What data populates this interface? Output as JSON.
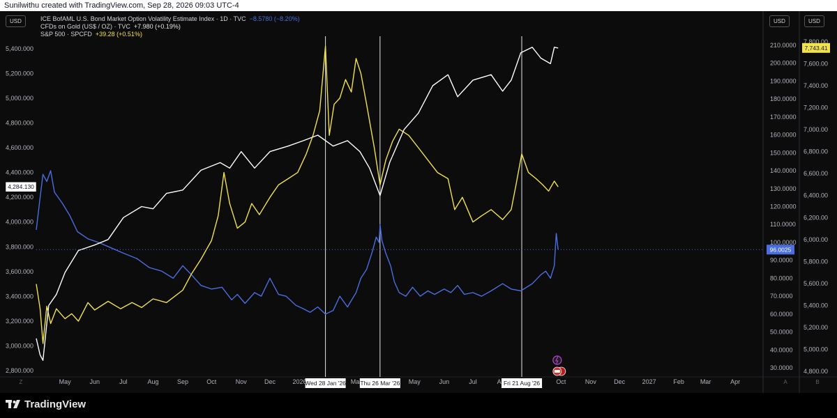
{
  "header": {
    "text": "Sunilwithu created with TradingView.com, Sep 28, 2026 09:03 UTC-4"
  },
  "legend": {
    "rows": [
      {
        "name": "ICE BofAML U.S. Bond Market Option Volatility Estimate Index · 1D · TVC",
        "value": "−8.5780 (−8.20%)"
      },
      {
        "name": "CFDs on Gold (US$ / OZ) · TVC",
        "value": "+7.980 (+0.19%)"
      },
      {
        "name": "S&P 500 · SPCFD",
        "value": "+39.28 (+0.51%)"
      }
    ]
  },
  "currency_badges": {
    "left": "USD",
    "right1": "USD",
    "right2": "USD"
  },
  "footer": {
    "brand": "TradingView",
    "left_corner": "Z",
    "right_corner1": "A",
    "right_corner2": "B"
  },
  "colors": {
    "move": "#4a6ee0",
    "gold": "#f2e24b",
    "spx": "#ffffff",
    "background": "#0c0c0c"
  },
  "chart_data": {
    "type": "line",
    "x_axis": {
      "tick_labels": [
        "May",
        "Jun",
        "Jul",
        "Aug",
        "Sep",
        "Oct",
        "Nov",
        "Dec",
        "2026",
        "Mar",
        "Apr",
        "May",
        "Jun",
        "Jul",
        "Aug",
        "Sep",
        "Oct",
        "Nov",
        "Dec",
        "2027",
        "Feb",
        "Mar",
        "Apr"
      ],
      "range": [
        "2025-04-01",
        "2027-04-30"
      ],
      "grid": false
    },
    "y_axes": {
      "gold": {
        "side": "left",
        "range": [
          2750,
          5500
        ],
        "tick_labels": [
          "2,800.000",
          "3,000.000",
          "3,200.000",
          "3,400.000",
          "3,600.000",
          "3,800.000",
          "4,000.000",
          "4,200.000",
          "4,400.000",
          "4,600.000",
          "4,800.000",
          "5,000.000",
          "5,200.000",
          "5,400.000"
        ]
      },
      "move": {
        "side": "right",
        "range": [
          25,
          215
        ],
        "tick_labels": [
          "30.0000",
          "40.0000",
          "50.0000",
          "60.0000",
          "70.0000",
          "80.0000",
          "90.0000",
          "100.0000",
          "110.0000",
          "120.0000",
          "130.0000",
          "140.0000",
          "150.0000",
          "160.0000",
          "170.0000",
          "180.0000",
          "190.0000",
          "200.0000",
          "210.0000"
        ]
      },
      "spx": {
        "side": "right",
        "range": [
          4750,
          7850
        ],
        "tick_labels": [
          "4,800.00",
          "5,000.00",
          "5,200.00",
          "5,400.00",
          "5,600.00",
          "5,800.00",
          "6,000.00",
          "6,200.00",
          "6,400.00",
          "6,600.00",
          "6,800.00",
          "7,000.00",
          "7,200.00",
          "7,400.00",
          "7,600.00",
          "7,800.00"
        ]
      }
    },
    "series": [
      {
        "key": "move",
        "axis": "move",
        "points": [
          [
            "2025-04-01",
            107
          ],
          [
            "2025-04-05",
            125
          ],
          [
            "2025-04-08",
            138
          ],
          [
            "2025-04-12",
            134
          ],
          [
            "2025-04-16",
            140
          ],
          [
            "2025-04-20",
            128
          ],
          [
            "2025-04-28",
            122
          ],
          [
            "2025-05-06",
            115
          ],
          [
            "2025-05-14",
            106
          ],
          [
            "2025-05-25",
            102
          ],
          [
            "2025-06-05",
            100
          ],
          [
            "2025-06-18",
            97
          ],
          [
            "2025-07-01",
            94
          ],
          [
            "2025-07-15",
            91
          ],
          [
            "2025-07-28",
            86
          ],
          [
            "2025-08-10",
            84
          ],
          [
            "2025-08-22",
            80
          ],
          [
            "2025-09-01",
            87
          ],
          [
            "2025-09-10",
            82
          ],
          [
            "2025-09-20",
            76
          ],
          [
            "2025-10-01",
            74
          ],
          [
            "2025-10-12",
            75
          ],
          [
            "2025-10-22",
            68
          ],
          [
            "2025-10-28",
            71
          ],
          [
            "2025-11-05",
            66
          ],
          [
            "2025-11-15",
            72
          ],
          [
            "2025-11-22",
            70
          ],
          [
            "2025-12-01",
            80
          ],
          [
            "2025-12-10",
            71
          ],
          [
            "2025-12-18",
            70
          ],
          [
            "2025-12-28",
            65
          ],
          [
            "2026-01-05",
            63
          ],
          [
            "2026-01-12",
            61
          ],
          [
            "2026-01-20",
            64
          ],
          [
            "2026-01-28",
            60
          ],
          [
            "2026-02-05",
            62
          ],
          [
            "2026-02-12",
            70
          ],
          [
            "2026-02-20",
            64
          ],
          [
            "2026-03-01",
            72
          ],
          [
            "2026-03-06",
            80
          ],
          [
            "2026-03-12",
            85
          ],
          [
            "2026-03-18",
            95
          ],
          [
            "2026-03-22",
            103
          ],
          [
            "2026-03-25",
            100
          ],
          [
            "2026-03-26",
            110
          ],
          [
            "2026-03-28",
            101
          ],
          [
            "2026-04-01",
            94
          ],
          [
            "2026-04-06",
            87
          ],
          [
            "2026-04-10",
            78
          ],
          [
            "2026-04-15",
            72
          ],
          [
            "2026-04-22",
            70
          ],
          [
            "2026-04-29",
            75
          ],
          [
            "2026-05-07",
            70
          ],
          [
            "2026-05-15",
            73
          ],
          [
            "2026-05-22",
            71
          ],
          [
            "2026-06-01",
            74
          ],
          [
            "2026-06-08",
            72
          ],
          [
            "2026-06-15",
            76
          ],
          [
            "2026-06-22",
            71
          ],
          [
            "2026-07-01",
            72
          ],
          [
            "2026-07-10",
            70
          ],
          [
            "2026-07-20",
            73
          ],
          [
            "2026-08-01",
            77
          ],
          [
            "2026-08-10",
            74
          ],
          [
            "2026-08-20",
            73
          ],
          [
            "2026-09-01",
            77
          ],
          [
            "2026-09-10",
            82
          ],
          [
            "2026-09-15",
            84
          ],
          [
            "2026-09-20",
            80
          ],
          [
            "2026-09-24",
            87
          ],
          [
            "2026-09-26",
            105
          ],
          [
            "2026-09-28",
            96
          ]
        ]
      },
      {
        "key": "gold",
        "axis": "gold",
        "points": [
          [
            "2025-04-01",
            3500
          ],
          [
            "2025-04-05",
            3300
          ],
          [
            "2025-04-08",
            3020
          ],
          [
            "2025-04-12",
            3320
          ],
          [
            "2025-04-16",
            3180
          ],
          [
            "2025-04-22",
            3300
          ],
          [
            "2025-05-01",
            3220
          ],
          [
            "2025-05-08",
            3260
          ],
          [
            "2025-05-15",
            3200
          ],
          [
            "2025-05-25",
            3350
          ],
          [
            "2025-06-01",
            3290
          ],
          [
            "2025-06-15",
            3360
          ],
          [
            "2025-06-28",
            3300
          ],
          [
            "2025-07-10",
            3350
          ],
          [
            "2025-07-20",
            3310
          ],
          [
            "2025-08-01",
            3380
          ],
          [
            "2025-08-15",
            3350
          ],
          [
            "2025-09-01",
            3450
          ],
          [
            "2025-09-10",
            3580
          ],
          [
            "2025-09-20",
            3700
          ],
          [
            "2025-10-01",
            3850
          ],
          [
            "2025-10-08",
            4050
          ],
          [
            "2025-10-14",
            4400
          ],
          [
            "2025-10-20",
            4150
          ],
          [
            "2025-10-28",
            3950
          ],
          [
            "2025-11-05",
            4000
          ],
          [
            "2025-11-12",
            4150
          ],
          [
            "2025-11-20",
            4060
          ],
          [
            "2025-12-01",
            4200
          ],
          [
            "2025-12-10",
            4300
          ],
          [
            "2025-12-20",
            4350
          ],
          [
            "2025-12-30",
            4400
          ],
          [
            "2026-01-08",
            4550
          ],
          [
            "2026-01-15",
            4700
          ],
          [
            "2026-01-22",
            4900
          ],
          [
            "2026-01-28",
            5420
          ],
          [
            "2026-02-01",
            4700
          ],
          [
            "2026-02-06",
            4950
          ],
          [
            "2026-02-12",
            5000
          ],
          [
            "2026-02-18",
            5150
          ],
          [
            "2026-02-24",
            5050
          ],
          [
            "2026-03-01",
            5320
          ],
          [
            "2026-03-06",
            5200
          ],
          [
            "2026-03-12",
            4950
          ],
          [
            "2026-03-20",
            4600
          ],
          [
            "2026-03-26",
            4300
          ],
          [
            "2026-04-01",
            4500
          ],
          [
            "2026-04-08",
            4650
          ],
          [
            "2026-04-15",
            4750
          ],
          [
            "2026-04-25",
            4700
          ],
          [
            "2026-05-05",
            4600
          ],
          [
            "2026-05-15",
            4500
          ],
          [
            "2026-05-25",
            4400
          ],
          [
            "2026-06-05",
            4350
          ],
          [
            "2026-06-12",
            4100
          ],
          [
            "2026-06-20",
            4200
          ],
          [
            "2026-07-01",
            4000
          ],
          [
            "2026-07-10",
            4050
          ],
          [
            "2026-07-20",
            4100
          ],
          [
            "2026-08-01",
            4020
          ],
          [
            "2026-08-10",
            4100
          ],
          [
            "2026-08-15",
            4300
          ],
          [
            "2026-08-21",
            4550
          ],
          [
            "2026-08-28",
            4400
          ],
          [
            "2026-09-05",
            4350
          ],
          [
            "2026-09-12",
            4300
          ],
          [
            "2026-09-18",
            4250
          ],
          [
            "2026-09-24",
            4330
          ],
          [
            "2026-09-28",
            4284
          ]
        ]
      },
      {
        "key": "spx",
        "axis": "spx",
        "points": [
          [
            "2025-04-01",
            5100
          ],
          [
            "2025-04-05",
            4950
          ],
          [
            "2025-04-08",
            4900
          ],
          [
            "2025-04-14",
            5400
          ],
          [
            "2025-04-22",
            5500
          ],
          [
            "2025-05-01",
            5700
          ],
          [
            "2025-05-15",
            5900
          ],
          [
            "2025-06-01",
            5950
          ],
          [
            "2025-06-15",
            6000
          ],
          [
            "2025-07-01",
            6200
          ],
          [
            "2025-07-20",
            6300
          ],
          [
            "2025-08-01",
            6280
          ],
          [
            "2025-08-15",
            6420
          ],
          [
            "2025-09-01",
            6450
          ],
          [
            "2025-09-20",
            6630
          ],
          [
            "2025-10-10",
            6700
          ],
          [
            "2025-10-20",
            6650
          ],
          [
            "2025-11-01",
            6800
          ],
          [
            "2025-11-15",
            6650
          ],
          [
            "2025-12-01",
            6800
          ],
          [
            "2025-12-20",
            6850
          ],
          [
            "2026-01-05",
            6900
          ],
          [
            "2026-01-20",
            6950
          ],
          [
            "2026-02-05",
            6850
          ],
          [
            "2026-02-20",
            6900
          ],
          [
            "2026-03-05",
            6800
          ],
          [
            "2026-03-15",
            6650
          ],
          [
            "2026-03-26",
            6400
          ],
          [
            "2026-04-05",
            6700
          ],
          [
            "2026-04-20",
            7000
          ],
          [
            "2026-05-05",
            7150
          ],
          [
            "2026-05-20",
            7400
          ],
          [
            "2026-06-05",
            7500
          ],
          [
            "2026-06-15",
            7300
          ],
          [
            "2026-07-01",
            7450
          ],
          [
            "2026-07-20",
            7500
          ],
          [
            "2026-08-01",
            7350
          ],
          [
            "2026-08-10",
            7450
          ],
          [
            "2026-08-20",
            7700
          ],
          [
            "2026-09-01",
            7750
          ],
          [
            "2026-09-10",
            7650
          ],
          [
            "2026-09-20",
            7600
          ],
          [
            "2026-09-24",
            7750
          ],
          [
            "2026-09-28",
            7743
          ]
        ]
      }
    ],
    "last_value_labels": {
      "gold": {
        "text": "4,284.130",
        "value": 4284.13
      },
      "move": {
        "text": "96.0025",
        "value": 96.0025
      },
      "spx": {
        "text": "7,743.41",
        "value": 7743.41
      }
    },
    "vertical_markers": [
      {
        "date": "2026-01-28",
        "label": "Wed 28 Jan '26"
      },
      {
        "date": "2026-03-26",
        "label": "Thu 26 Mar '26"
      },
      {
        "date": "2026-08-21",
        "label": "Fri 21 Aug '26"
      }
    ]
  }
}
